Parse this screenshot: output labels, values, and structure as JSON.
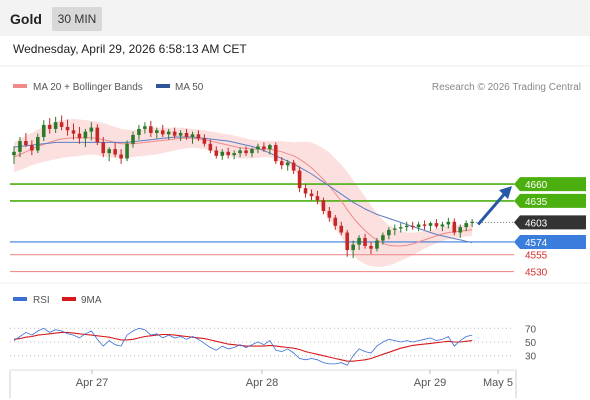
{
  "header": {
    "title": "Gold",
    "timeframe": "30 MIN",
    "datetime": "Wednesday, April 29, 2026 6:58:13 AM CET"
  },
  "legend": {
    "ma20": {
      "label": "MA 20 + Bollinger Bands",
      "color": "#f08a8a"
    },
    "ma50": {
      "label": "MA 50",
      "color": "#2f5597"
    },
    "credit": "Research © 2026 Trading Central"
  },
  "colors": {
    "up": "#2a7a2a",
    "down": "#c62828",
    "band": "#fbd5d5",
    "resistance": "#4caf10",
    "pivot": "#3b7ddd",
    "support": "#ef8f8f",
    "current": "#333333",
    "arrow": "#2559a8"
  },
  "chart_data": [
    {
      "type": "candlestick",
      "ylim": [
        4510,
        4785
      ],
      "x_ticks": [
        "Apr 27",
        "Apr 28",
        "Apr 29",
        "May 5"
      ],
      "levels": [
        {
          "value": 4660,
          "label": "4660",
          "kind": "resistance"
        },
        {
          "value": 4635,
          "label": "4635",
          "kind": "resistance"
        },
        {
          "value": 4603,
          "label": "4603",
          "kind": "current"
        },
        {
          "value": 4574,
          "label": "4574",
          "kind": "pivot"
        },
        {
          "value": 4555,
          "label": "4555",
          "kind": "support"
        },
        {
          "value": 4530,
          "label": "4530",
          "kind": "support"
        }
      ],
      "forecast": {
        "from": 4603,
        "to": 4660
      },
      "candles": [
        [
          4703,
          4716,
          4690,
          4708
        ],
        [
          4708,
          4730,
          4700,
          4724
        ],
        [
          4724,
          4736,
          4715,
          4718
        ],
        [
          4718,
          4725,
          4703,
          4710
        ],
        [
          4710,
          4735,
          4706,
          4730
        ],
        [
          4730,
          4755,
          4724,
          4748
        ],
        [
          4748,
          4758,
          4735,
          4742
        ],
        [
          4742,
          4760,
          4736,
          4752
        ],
        [
          4752,
          4762,
          4740,
          4745
        ],
        [
          4745,
          4756,
          4732,
          4740
        ],
        [
          4740,
          4750,
          4726,
          4735
        ],
        [
          4735,
          4745,
          4720,
          4728
        ],
        [
          4728,
          4742,
          4715,
          4738
        ],
        [
          4738,
          4752,
          4725,
          4744
        ],
        [
          4744,
          4749,
          4718,
          4722
        ],
        [
          4722,
          4730,
          4700,
          4706
        ],
        [
          4706,
          4715,
          4694,
          4712
        ],
        [
          4712,
          4722,
          4700,
          4704
        ],
        [
          4704,
          4712,
          4690,
          4698
        ],
        [
          4698,
          4725,
          4694,
          4720
        ],
        [
          4720,
          4738,
          4714,
          4733
        ],
        [
          4733,
          4748,
          4726,
          4742
        ],
        [
          4742,
          4752,
          4735,
          4746
        ],
        [
          4746,
          4754,
          4730,
          4736
        ],
        [
          4736,
          4744,
          4728,
          4740
        ],
        [
          4740,
          4748,
          4730,
          4734
        ],
        [
          4734,
          4742,
          4726,
          4738
        ],
        [
          4738,
          4744,
          4728,
          4732
        ],
        [
          4732,
          4740,
          4724,
          4736
        ],
        [
          4736,
          4742,
          4726,
          4730
        ],
        [
          4730,
          4738,
          4720,
          4734
        ],
        [
          4734,
          4740,
          4724,
          4728
        ],
        [
          4728,
          4734,
          4716,
          4720
        ],
        [
          4720,
          4726,
          4706,
          4710
        ],
        [
          4710,
          4716,
          4698,
          4702
        ],
        [
          4702,
          4712,
          4696,
          4708
        ],
        [
          4708,
          4714,
          4698,
          4703
        ],
        [
          4703,
          4710,
          4697,
          4706
        ],
        [
          4706,
          4714,
          4700,
          4710
        ],
        [
          4710,
          4716,
          4702,
          4706
        ],
        [
          4706,
          4714,
          4700,
          4712
        ],
        [
          4712,
          4720,
          4706,
          4716
        ],
        [
          4716,
          4722,
          4708,
          4712
        ],
        [
          4712,
          4720,
          4704,
          4718
        ],
        [
          4718,
          4722,
          4690,
          4694
        ],
        [
          4694,
          4700,
          4682,
          4688
        ],
        [
          4688,
          4696,
          4680,
          4692
        ],
        [
          4692,
          4696,
          4675,
          4680
        ],
        [
          4680,
          4686,
          4648,
          4654
        ],
        [
          4654,
          4660,
          4640,
          4646
        ],
        [
          4646,
          4652,
          4636,
          4642
        ],
        [
          4642,
          4650,
          4630,
          4636
        ],
        [
          4636,
          4640,
          4615,
          4620
        ],
        [
          4620,
          4626,
          4604,
          4610
        ],
        [
          4610,
          4614,
          4592,
          4598
        ],
        [
          4598,
          4604,
          4584,
          4588
        ],
        [
          4588,
          4592,
          4552,
          4562
        ],
        [
          4562,
          4576,
          4550,
          4570
        ],
        [
          4570,
          4584,
          4562,
          4580
        ],
        [
          4580,
          4586,
          4564,
          4568
        ],
        [
          4568,
          4574,
          4556,
          4564
        ],
        [
          4564,
          4580,
          4560,
          4576
        ],
        [
          4576,
          4588,
          4570,
          4584
        ],
        [
          4584,
          4596,
          4578,
          4592
        ],
        [
          4592,
          4600,
          4584,
          4594
        ],
        [
          4594,
          4602,
          4588,
          4596
        ],
        [
          4596,
          4604,
          4590,
          4598
        ],
        [
          4598,
          4604,
          4592,
          4596
        ],
        [
          4596,
          4604,
          4590,
          4600
        ],
        [
          4600,
          4606,
          4592,
          4598
        ],
        [
          4598,
          4604,
          4590,
          4602
        ],
        [
          4602,
          4608,
          4594,
          4597
        ],
        [
          4597,
          4604,
          4590,
          4600
        ],
        [
          4600,
          4610,
          4594,
          4604
        ],
        [
          4604,
          4609,
          4584,
          4588
        ],
        [
          4588,
          4600,
          4580,
          4596
        ],
        [
          4596,
          4606,
          4590,
          4602
        ],
        [
          4602,
          4608,
          4596,
          4604
        ]
      ],
      "ma20": [
        4700,
        4704,
        4708,
        4712,
        4716,
        4719,
        4722,
        4725,
        4727,
        4728,
        4729,
        4729,
        4729,
        4729,
        4728,
        4726,
        4724,
        4722,
        4720,
        4720,
        4720,
        4721,
        4722,
        4723,
        4724,
        4725,
        4726,
        4727,
        4728,
        4728,
        4728,
        4727,
        4726,
        4724,
        4722,
        4720,
        4718,
        4716,
        4714,
        4713,
        4712,
        4712,
        4712,
        4712,
        4710,
        4708,
        4705,
        4702,
        4697,
        4691,
        4684,
        4676,
        4667,
        4657,
        4646,
        4635,
        4622,
        4610,
        4600,
        4591,
        4583,
        4577,
        4572,
        4569,
        4568,
        4568,
        4569,
        4571,
        4574,
        4577,
        4580,
        4583,
        4586,
        4588,
        4589,
        4590,
        4591,
        4592
      ],
      "band_width": [
        22,
        23,
        24,
        24,
        25,
        26,
        27,
        28,
        28,
        28,
        28,
        27,
        26,
        25,
        25,
        25,
        24,
        23,
        22,
        21,
        20,
        20,
        20,
        20,
        20,
        19,
        18,
        17,
        16,
        15,
        14,
        14,
        14,
        14,
        15,
        15,
        16,
        16,
        16,
        15,
        14,
        13,
        12,
        12,
        14,
        16,
        18,
        20,
        26,
        32,
        38,
        42,
        46,
        50,
        52,
        54,
        56,
        56,
        54,
        50,
        45,
        40,
        35,
        30,
        26,
        22,
        19,
        17,
        15,
        13,
        12,
        11,
        11,
        10,
        10,
        9,
        9,
        9
      ],
      "ma50": [
        4715,
        4716,
        4717,
        4718,
        4719,
        4720,
        4721,
        4722,
        4722,
        4722,
        4722,
        4722,
        4722,
        4722,
        4722,
        4722,
        4722,
        4722,
        4722,
        4722,
        4723,
        4724,
        4725,
        4726,
        4727,
        4728,
        4729,
        4730,
        4730,
        4730,
        4730,
        4729,
        4728,
        4727,
        4726,
        4725,
        4724,
        4722,
        4720,
        4718,
        4716,
        4713,
        4710,
        4706,
        4702,
        4698,
        4694,
        4690,
        4685,
        4680,
        4675,
        4669,
        4663,
        4657,
        4651,
        4645,
        4639,
        4633,
        4628,
        4623,
        4619,
        4615,
        4612,
        4609,
        4606,
        4603,
        4600,
        4597,
        4594,
        4591,
        4588,
        4585,
        4583,
        4581,
        4579,
        4577,
        4575,
        4573
      ]
    },
    {
      "type": "line",
      "ylim": [
        15,
        85
      ],
      "y_ticks": [
        70,
        50,
        30
      ],
      "series": [
        {
          "name": "RSI",
          "color": "#3b6fd4",
          "values": [
            52,
            58,
            64,
            60,
            66,
            70,
            64,
            68,
            66,
            62,
            60,
            56,
            62,
            66,
            54,
            44,
            52,
            46,
            44,
            60,
            66,
            70,
            68,
            60,
            62,
            56,
            60,
            56,
            58,
            54,
            58,
            54,
            48,
            42,
            38,
            44,
            40,
            42,
            46,
            42,
            46,
            50,
            46,
            52,
            38,
            36,
            40,
            34,
            26,
            24,
            26,
            24,
            20,
            18,
            18,
            20,
            16,
            30,
            40,
            36,
            34,
            44,
            50,
            54,
            52,
            50,
            52,
            50,
            52,
            54,
            56,
            52,
            54,
            58,
            44,
            52,
            58,
            60
          ]
        },
        {
          "name": "9MA",
          "color": "#d7191c",
          "values": [
            54,
            55,
            57,
            58,
            60,
            61,
            62,
            63,
            64,
            64,
            63,
            62,
            61,
            60,
            59,
            58,
            57,
            55,
            53,
            53,
            54,
            56,
            58,
            59,
            60,
            61,
            61,
            60,
            59,
            58,
            57,
            56,
            55,
            53,
            51,
            49,
            47,
            46,
            45,
            44,
            44,
            44,
            44,
            45,
            44,
            43,
            42,
            41,
            39,
            36,
            34,
            32,
            30,
            28,
            26,
            24,
            22,
            22,
            23,
            24,
            26,
            29,
            32,
            35,
            38,
            41,
            43,
            45,
            46,
            47,
            48,
            49,
            50,
            51,
            50,
            50,
            51,
            52
          ]
        }
      ],
      "x_ticks": [
        "Apr 27",
        "Apr 28",
        "Apr 29",
        "May 5"
      ]
    }
  ]
}
